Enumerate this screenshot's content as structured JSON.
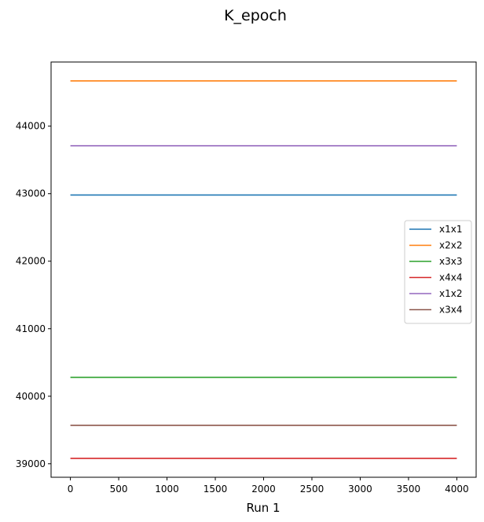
{
  "chart_data": {
    "type": "line",
    "title": "K_epoch",
    "xlabel": "Run 1",
    "ylabel": "",
    "xlim": [
      -200,
      4200
    ],
    "ylim": [
      38800,
      44950
    ],
    "xticks": [
      0,
      500,
      1000,
      1500,
      2000,
      2500,
      3000,
      3500,
      4000
    ],
    "yticks": [
      39000,
      40000,
      41000,
      42000,
      43000,
      44000
    ],
    "grid": false,
    "legend_position": "center-right",
    "x": [
      0,
      4000
    ],
    "series": [
      {
        "name": "x1x1",
        "color": "#1f77b4",
        "values": [
          42980,
          42980
        ]
      },
      {
        "name": "x2x2",
        "color": "#ff7f0e",
        "values": [
          44670,
          44670
        ]
      },
      {
        "name": "x3x3",
        "color": "#2ca02c",
        "values": [
          40280,
          40280
        ]
      },
      {
        "name": "x4x4",
        "color": "#d62728",
        "values": [
          39080,
          39080
        ]
      },
      {
        "name": "x1x2",
        "color": "#9467bd",
        "values": [
          43710,
          43710
        ]
      },
      {
        "name": "x3x4",
        "color": "#8c564b",
        "values": [
          39570,
          39570
        ]
      }
    ]
  }
}
